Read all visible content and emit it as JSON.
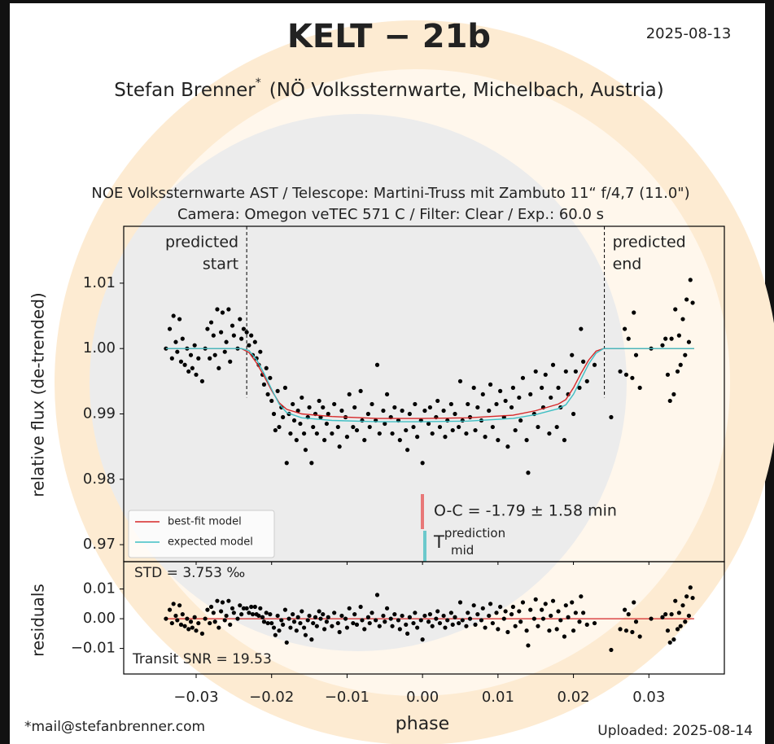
{
  "chart_data": {
    "type": "scatter",
    "title": "KELT − 21b",
    "date": "2025-08-13",
    "observer": {
      "name": "Stefan Brenner",
      "mark": "*",
      "affiliation": "(NÖ Volkssternwarte, Michelbach, Austria)"
    },
    "setup": [
      "NOE Volkssternwarte AST / Telescope: Martini-Truss mit Zambuto 11“ f/4,7 (11.0\")",
      "Camera: Omegon veTEC 571 C / Filter: Clear / Exp.: 60.0 s"
    ],
    "xlabel": "phase",
    "ylabel": "relative flux (de-trended)",
    "xlim": [
      -0.0396,
      0.04
    ],
    "xticks": [
      {
        "value": -0.03,
        "label": "−0.03"
      },
      {
        "value": -0.02,
        "label": "−0.02"
      },
      {
        "value": -0.01,
        "label": "−0.01"
      },
      {
        "value": 0,
        "label": "0.00"
      },
      0.01,
      0.02,
      0.03
    ],
    "ylim": [
      0.9674,
      1.0187
    ],
    "yticks": [
      0.97,
      0.98,
      0.99,
      {
        "value": 1.0,
        "label": "1.00"
      },
      1.01
    ],
    "color": "#000000",
    "x": [
      -0.034,
      -0.0335,
      -0.0332,
      -0.033,
      -0.0327,
      -0.0325,
      -0.0322,
      -0.032,
      -0.0318,
      -0.0315,
      -0.0312,
      -0.031,
      -0.0307,
      -0.0305,
      -0.0302,
      -0.03,
      -0.0297,
      -0.0292,
      -0.0288,
      -0.0285,
      -0.0282,
      -0.028,
      -0.0277,
      -0.0275,
      -0.0272,
      -0.027,
      -0.0267,
      -0.0265,
      -0.0262,
      -0.026,
      -0.0257,
      -0.0255,
      -0.0252,
      -0.025,
      -0.0245,
      -0.0242,
      -0.024,
      -0.0237,
      -0.0233,
      -0.023,
      -0.0227,
      -0.0225,
      -0.0222,
      -0.022,
      -0.0217,
      -0.0215,
      -0.0212,
      -0.021,
      -0.0207,
      -0.0205,
      -0.0202,
      -0.02,
      -0.0197,
      -0.0195,
      -0.0192,
      -0.019,
      -0.0187,
      -0.0185,
      -0.0182,
      -0.018,
      -0.0177,
      -0.0175,
      -0.0172,
      -0.017,
      -0.0167,
      -0.0165,
      -0.0162,
      -0.016,
      -0.0157,
      -0.0155,
      -0.0152,
      -0.015,
      -0.0147,
      -0.0145,
      -0.0142,
      -0.014,
      -0.0137,
      -0.0135,
      -0.0132,
      -0.013,
      -0.0127,
      -0.0125,
      -0.012,
      -0.0117,
      -0.0112,
      -0.011,
      -0.0107,
      -0.0102,
      -0.01,
      -0.0097,
      -0.0092,
      -0.009,
      -0.0087,
      -0.0082,
      -0.008,
      -0.0077,
      -0.0072,
      -0.007,
      -0.0067,
      -0.0062,
      -0.006,
      -0.0057,
      -0.0052,
      -0.005,
      -0.0047,
      -0.0042,
      -0.004,
      -0.0037,
      -0.0032,
      -0.003,
      -0.0027,
      -0.0022,
      -0.002,
      -0.0017,
      -0.0012,
      -0.001,
      -0.0007,
      -0.0002,
      0,
      0.0003,
      0.0008,
      0.001,
      0.0013,
      0.0018,
      0.002,
      0.0023,
      0.0028,
      0.003,
      0.0033,
      0.0038,
      0.004,
      0.0043,
      0.0048,
      0.005,
      0.0053,
      0.0058,
      0.006,
      0.0063,
      0.0068,
      0.007,
      0.0073,
      0.0078,
      0.008,
      0.0083,
      0.0088,
      0.009,
      0.0093,
      0.0098,
      0.01,
      0.0103,
      0.0108,
      0.011,
      0.0113,
      0.0118,
      0.012,
      0.0123,
      0.0128,
      0.013,
      0.0133,
      0.0138,
      0.014,
      0.0143,
      0.0148,
      0.015,
      0.0153,
      0.0158,
      0.016,
      0.0163,
      0.0168,
      0.017,
      0.0173,
      0.0178,
      0.018,
      0.0183,
      0.0188,
      0.019,
      0.0193,
      0.0198,
      0.02,
      0.0203,
      0.0208,
      0.021,
      0.0213,
      0.0218,
      0.0228,
      0.025,
      0.0262,
      0.0268,
      0.027,
      0.0273,
      0.0278,
      0.028,
      0.0283,
      0.0288,
      0.0303,
      0.0318,
      0.0322,
      0.0325,
      0.0328,
      0.033,
      0.0333,
      0.0335,
      0.0338,
      0.034,
      0.0342,
      0.0345,
      0.0348,
      0.035,
      0.0353,
      0.0355,
      0.0358
    ],
    "values": [
      1.0,
      1.003,
      0.9985,
      1.005,
      1.001,
      0.9995,
      1.0045,
      0.998,
      1.0015,
      0.9975,
      1.0,
      0.9965,
      0.999,
      0.997,
      1.0005,
      0.996,
      0.9985,
      0.995,
      1.0,
      1.003,
      0.9985,
      1.004,
      1.002,
      0.999,
      1.006,
      0.997,
      1.0025,
      1.0055,
      0.9995,
      1.001,
      1.006,
      0.998,
      1.0035,
      1.002,
      1.0,
      1.0045,
      1.0015,
      1.003,
      1.0025,
      1.0005,
      1.002,
      0.999,
      1.001,
      0.9985,
      0.9975,
      0.9995,
      0.996,
      0.9945,
      0.997,
      0.993,
      0.9955,
      0.992,
      0.99,
      0.9875,
      0.9935,
      0.988,
      0.991,
      0.9895,
      0.994,
      0.9825,
      0.99,
      0.987,
      0.9915,
      0.989,
      0.986,
      0.9905,
      0.9885,
      0.9925,
      0.987,
      0.9845,
      0.9895,
      0.991,
      0.9825,
      0.988,
      0.99,
      0.987,
      0.992,
      0.9895,
      0.991,
      0.986,
      0.9885,
      0.99,
      0.987,
      0.9915,
      0.988,
      0.985,
      0.9905,
      0.9895,
      0.9865,
      0.993,
      0.988,
      0.991,
      0.9875,
      0.9935,
      0.989,
      0.986,
      0.99,
      0.988,
      0.9915,
      0.989,
      0.9975,
      0.987,
      0.9905,
      0.9885,
      0.993,
      0.9895,
      0.987,
      0.991,
      0.989,
      0.986,
      0.9905,
      0.9875,
      0.9845,
      0.99,
      0.988,
      0.9915,
      0.9865,
      0.989,
      0.9825,
      0.9905,
      0.9885,
      0.991,
      0.987,
      0.9895,
      0.992,
      0.988,
      0.9905,
      0.9865,
      0.989,
      0.9915,
      0.9875,
      0.99,
      0.988,
      0.995,
      0.989,
      0.987,
      0.9915,
      0.9895,
      0.994,
      0.9875,
      0.991,
      0.989,
      0.993,
      0.9865,
      0.9905,
      0.9945,
      0.988,
      0.9915,
      0.986,
      0.9935,
      0.9895,
      0.992,
      0.985,
      0.991,
      0.994,
      0.9875,
      0.9925,
      0.989,
      0.9955,
      0.986,
      0.981,
      0.993,
      0.99,
      0.9965,
      0.988,
      0.994,
      0.991,
      0.996,
      0.987,
      0.9925,
      0.9975,
      0.988,
      0.994,
      0.991,
      0.986,
      0.9965,
      0.993,
      0.999,
      0.99,
      0.9965,
      0.994,
      1.003,
      0.998,
      0.995,
      0.9975,
      0.9895,
      0.9965,
      1.003,
      0.996,
      1.0015,
      0.9955,
      1.0055,
      0.999,
      0.994,
      1.0,
      1.0005,
      1.0015,
      0.996,
      0.992,
      1.0015,
      0.993,
      1.006,
      0.9965,
      1.002,
      0.9975,
      1.0045,
      0.999,
      1.0075,
      1.001,
      1.0105,
      1.007
    ],
    "models": [
      {
        "name": "best-fit model",
        "color": "#d62728",
        "x": [
          -0.034,
          -0.024,
          -0.023,
          -0.022,
          -0.021,
          -0.02,
          -0.019,
          -0.018,
          -0.016,
          -0.012,
          -0.006,
          0,
          0.006,
          0.012,
          0.015,
          0.018,
          0.019,
          0.02,
          0.021,
          0.022,
          0.023,
          0.024,
          0.036
        ],
        "values": [
          1.0,
          1.0,
          0.9994,
          0.9978,
          0.9958,
          0.9936,
          0.9917,
          0.9907,
          0.99,
          0.9896,
          0.9893,
          0.9893,
          0.9894,
          0.9898,
          0.9905,
          0.9915,
          0.9922,
          0.994,
          0.9962,
          0.9982,
          0.9996,
          1.0,
          1.0
        ]
      },
      {
        "name": "expected model",
        "color": "#3fbfc4",
        "x": [
          -0.034,
          -0.024,
          -0.023,
          -0.022,
          -0.021,
          -0.02,
          -0.019,
          -0.018,
          -0.016,
          -0.012,
          -0.006,
          0,
          0.006,
          0.012,
          0.015,
          0.018,
          0.019,
          0.02,
          0.021,
          0.022,
          0.023,
          0.024,
          0.036
        ],
        "values": [
          1.0,
          1.0,
          0.9997,
          0.9983,
          0.9962,
          0.9938,
          0.9915,
          0.9902,
          0.9894,
          0.989,
          0.9888,
          0.9888,
          0.9889,
          0.9893,
          0.9899,
          0.9908,
          0.9914,
          0.993,
          0.9953,
          0.9976,
          0.9993,
          1.0,
          1.0
        ]
      }
    ],
    "predicted_start": {
      "x": -0.0233,
      "label": [
        "predicted",
        "start"
      ]
    },
    "predicted_end": {
      "x": 0.0241,
      "label": [
        "predicted",
        "end"
      ]
    },
    "oc_label": "O-C = -1.79 ± 1.58 min",
    "tmid": {
      "base": "T",
      "sup": "prediction",
      "sub": "mid"
    },
    "residuals": {
      "ylabel": "residuals",
      "ylim": [
        -0.0186,
        0.0192
      ],
      "yticks": [
        {
          "value": -0.01,
          "label": "−0.01"
        },
        {
          "value": 0,
          "label": "0.00"
        },
        0.01
      ],
      "values": [
        0,
        0.003,
        -0.0015,
        0.005,
        0.001,
        -0.0005,
        0.0045,
        -0.002,
        0.0015,
        -0.0025,
        0,
        -0.0035,
        -0.001,
        -0.003,
        0.0005,
        -0.004,
        -0.0015,
        -0.005,
        0,
        0.003,
        -0.0015,
        0.004,
        0.002,
        -0.001,
        0.006,
        -0.003,
        0.0025,
        0.0055,
        -0.0005,
        0.001,
        0.006,
        -0.002,
        0.0035,
        0.002,
        0,
        0.0045,
        0.0015,
        0.0035,
        0.0035,
        0.002,
        0.004,
        0.0015,
        0.004,
        0.0015,
        0.001,
        0.0035,
        0.0005,
        -0.001,
        0.002,
        -0.0015,
        0.0015,
        -0.0015,
        -0.003,
        -0.0055,
        0.001,
        -0.004,
        -0.0005,
        -0.002,
        0.003,
        -0.008,
        0,
        -0.003,
        0.0015,
        -0.001,
        -0.004,
        0.0005,
        -0.0015,
        0.0025,
        -0.003,
        -0.0055,
        -0.0005,
        0.001,
        -0.007,
        -0.0015,
        0.0005,
        -0.0025,
        0.0025,
        0,
        0.0015,
        -0.0035,
        -0.001,
        0.0005,
        -0.0025,
        0.002,
        -0.0015,
        -0.0045,
        0.001,
        0,
        -0.003,
        0.0035,
        -0.0015,
        0.0015,
        -0.002,
        0.004,
        -0.0005,
        -0.0035,
        0.0005,
        -0.0015,
        0.002,
        -0.0005,
        0.008,
        -0.0025,
        0.001,
        -0.001,
        0.0035,
        0,
        -0.0025,
        0.0015,
        -0.0005,
        -0.0035,
        0.001,
        -0.002,
        -0.005,
        0.0005,
        -0.0015,
        0.002,
        -0.003,
        -0.0005,
        -0.007,
        0.001,
        -0.001,
        0.0015,
        -0.0025,
        0,
        0.0025,
        -0.0015,
        0.001,
        -0.003,
        -0.0005,
        0.002,
        -0.002,
        0.0005,
        -0.0015,
        0.0055,
        -0.0005,
        -0.0025,
        0.002,
        0,
        0.0045,
        -0.002,
        0.0015,
        -0.0005,
        0.0035,
        -0.003,
        0.001,
        0.005,
        -0.0015,
        0.002,
        -0.0035,
        0.004,
        0,
        0.0025,
        -0.0045,
        0.0015,
        0.004,
        -0.0025,
        0.0025,
        -0.001,
        0.0055,
        -0.004,
        -0.009,
        0.003,
        0,
        0.0065,
        -0.0025,
        0.003,
        0,
        0.005,
        -0.004,
        0.001,
        0.006,
        -0.0035,
        0.0025,
        -0.0005,
        -0.006,
        0.0045,
        0.0005,
        0.0055,
        -0.004,
        0.002,
        -0.001,
        0.0075,
        0.002,
        -0.002,
        -0.0015,
        -0.0105,
        -0.0035,
        0.003,
        -0.004,
        0.0015,
        -0.0045,
        0.0055,
        -0.001,
        -0.006,
        0,
        0.0005,
        0.0015,
        -0.004,
        -0.008,
        0.0015,
        -0.007,
        0.006,
        -0.0035,
        0.002,
        -0.0025,
        0.0045,
        -0.001,
        0.0075,
        0.001,
        0.0105,
        0.007
      ],
      "model": {
        "color": "#d62728",
        "x": [
          -0.034,
          0.036
        ],
        "values": [
          0,
          0
        ]
      },
      "std_label": "STD = 3.753 ‰",
      "snr_label": "Transit SNR = 19.53"
    },
    "footer": {
      "email": "*mail@stefanbrenner.com",
      "uploaded": "Uploaded: 2025-08-14"
    }
  }
}
